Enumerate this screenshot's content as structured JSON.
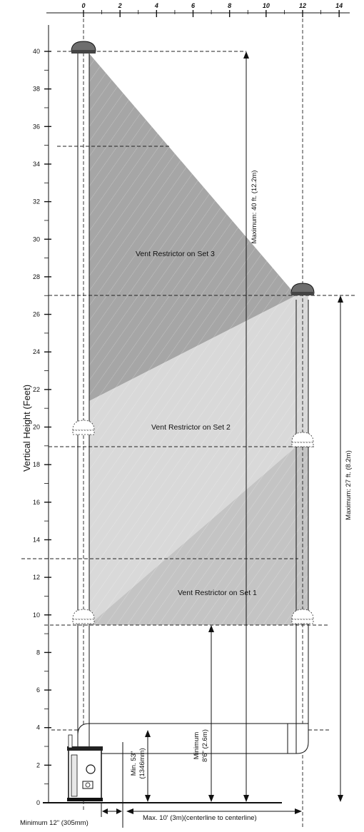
{
  "y_axis": {
    "title": "Vertical Height (Feet)",
    "ticks": [
      "0",
      "2",
      "4",
      "6",
      "8",
      "10",
      "12",
      "14",
      "16",
      "18",
      "20",
      "22",
      "24",
      "26",
      "28",
      "30",
      "32",
      "34",
      "36",
      "38",
      "40"
    ]
  },
  "x_axis": {
    "ticks": [
      "0",
      "2",
      "4",
      "6",
      "8",
      "10",
      "12",
      "14"
    ]
  },
  "regions": {
    "set3": "Vent Restrictor on Set 3",
    "set2": "Vent Restrictor on Set 2",
    "set1": "Vent Restrictor on Set 1"
  },
  "dimensions": {
    "max_40": "Maximum: 40 ft. (12.2m)",
    "max_27": "Maximum: 27 ft. (8.2m)",
    "min_53_line1": "Min. 53\"",
    "min_53_line2": "(1346mm)",
    "min_86_line1": "Minimum",
    "min_86_line2": "8'6\" (2.6m)",
    "min_12": "Minimum 12\" (305mm)",
    "max_10": "Max. 10' (3m)(centerline to centerline)"
  },
  "colors": {
    "dark_region": "#a6a6a6",
    "light_region": "#d9d9d9",
    "mid_region": "#c4c4c4"
  },
  "icons": [
    "vent-cap-icon",
    "vent-restrictor-marker-icon",
    "stove-icon"
  ]
}
